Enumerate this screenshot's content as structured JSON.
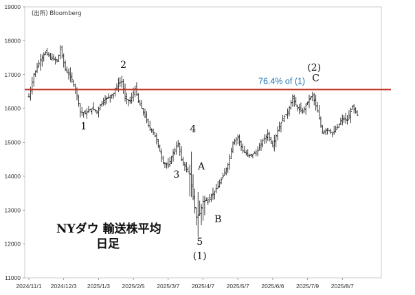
{
  "chart_data": {
    "type": "ohlc",
    "source": "(出所) Bloomberg",
    "title_lines": [
      "NYダウ 輸送株平均",
      "日足"
    ],
    "ylim": [
      11000,
      19000
    ],
    "yticks": [
      11000,
      12000,
      13000,
      14000,
      15000,
      16000,
      17000,
      18000,
      19000
    ],
    "x_range_trading_days": [
      0,
      210
    ],
    "xticks": [
      {
        "label": "2024/11/1",
        "x": 0
      },
      {
        "label": "2024/12/3",
        "x": 21
      },
      {
        "label": "2025/1/3",
        "x": 42
      },
      {
        "label": "2025/2/5",
        "x": 63
      },
      {
        "label": "2025/3/7",
        "x": 84
      },
      {
        "label": "2025/4/7",
        "x": 105
      },
      {
        "label": "2025/5/7",
        "x": 126
      },
      {
        "label": "2025/6/6",
        "x": 147
      },
      {
        "label": "2025/7/9",
        "x": 168
      },
      {
        "label": "2025/8/7",
        "x": 189
      }
    ],
    "reference_line": {
      "value": 16560,
      "label": "76.4% of (1)",
      "color": "#c0392b"
    },
    "wave_labels": [
      {
        "text": "1",
        "x": 33,
        "y": 15380
      },
      {
        "text": "2",
        "x": 57,
        "y": 17200
      },
      {
        "text": "3",
        "x": 89,
        "y": 13960
      },
      {
        "text": "4",
        "x": 99,
        "y": 15300
      },
      {
        "text": "A",
        "x": 104,
        "y": 14200
      },
      {
        "text": "B",
        "x": 114,
        "y": 12640
      },
      {
        "text": "5",
        "x": 103,
        "y": 11970
      },
      {
        "text": "(1)",
        "x": 103,
        "y": 11560
      },
      {
        "text": "(2)",
        "x": 172,
        "y": 17120
      },
      {
        "text": "C",
        "x": 173,
        "y": 16800
      }
    ],
    "waypoints": [
      [
        0,
        16350
      ],
      [
        3,
        17000
      ],
      [
        7,
        17450
      ],
      [
        10,
        17650
      ],
      [
        13,
        17500
      ],
      [
        17,
        17400
      ],
      [
        19,
        17750
      ],
      [
        22,
        17150
      ],
      [
        26,
        16850
      ],
      [
        29,
        16400
      ],
      [
        31,
        15900
      ],
      [
        34,
        15850
      ],
      [
        38,
        16000
      ],
      [
        41,
        15900
      ],
      [
        44,
        16200
      ],
      [
        47,
        16300
      ],
      [
        51,
        16450
      ],
      [
        54,
        16750
      ],
      [
        56,
        16800
      ],
      [
        58,
        16300
      ],
      [
        61,
        16200
      ],
      [
        64,
        16600
      ],
      [
        66,
        16200
      ],
      [
        69,
        15900
      ],
      [
        72,
        15500
      ],
      [
        75,
        15300
      ],
      [
        78,
        14900
      ],
      [
        81,
        14400
      ],
      [
        84,
        14300
      ],
      [
        87,
        14700
      ],
      [
        90,
        14950
      ],
      [
        92,
        14500
      ],
      [
        95,
        14200
      ],
      [
        97,
        14050
      ],
      [
        99,
        13350
      ],
      [
        101,
        12800
      ],
      [
        103,
        12900
      ],
      [
        105,
        13250
      ],
      [
        108,
        13300
      ],
      [
        111,
        13500
      ],
      [
        114,
        13700
      ],
      [
        117,
        14000
      ],
      [
        120,
        14350
      ],
      [
        123,
        15000
      ],
      [
        126,
        15150
      ],
      [
        129,
        14750
      ],
      [
        132,
        14600
      ],
      [
        135,
        14650
      ],
      [
        138,
        14750
      ],
      [
        141,
        15050
      ],
      [
        144,
        15250
      ],
      [
        147,
        14900
      ],
      [
        150,
        15350
      ],
      [
        153,
        15700
      ],
      [
        156,
        15900
      ],
      [
        159,
        16300
      ],
      [
        162,
        16000
      ],
      [
        165,
        15900
      ],
      [
        168,
        16200
      ],
      [
        171,
        16400
      ],
      [
        174,
        15900
      ],
      [
        177,
        15300
      ],
      [
        180,
        15400
      ],
      [
        183,
        15250
      ],
      [
        186,
        15450
      ],
      [
        189,
        15700
      ],
      [
        192,
        15650
      ],
      [
        195,
        16050
      ],
      [
        198,
        15800
      ]
    ]
  }
}
